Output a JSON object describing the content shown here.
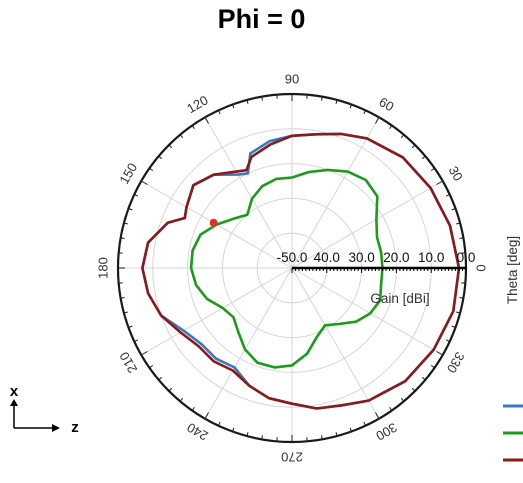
{
  "chart_data": {
    "type": "polar-line",
    "title": "Phi = 0",
    "angular_axis": {
      "label": "Theta [deg]",
      "ticks": [
        0,
        30,
        60,
        90,
        120,
        150,
        180,
        210,
        240,
        270,
        300,
        330
      ],
      "tick_labels": [
        "0",
        "30",
        "60",
        "90",
        "120",
        "150",
        "180",
        "210",
        "240",
        "270",
        "300",
        "330"
      ]
    },
    "radial_axis": {
      "label": "Gain [dBi]",
      "range": [
        -50,
        0
      ],
      "ticks": [
        -50,
        -40,
        -30,
        -20,
        -10,
        0
      ],
      "tick_labels": [
        "-50.0",
        "40.0",
        "30.0",
        "20.0",
        "10.0",
        "0.0"
      ]
    },
    "grid": true,
    "series": [
      {
        "color": "#3a78c2",
        "points": [
          [
            0,
            -2
          ],
          [
            15,
            -3
          ],
          [
            30,
            -4
          ],
          [
            45,
            -5
          ],
          [
            60,
            -7
          ],
          [
            70,
            -9
          ],
          [
            80,
            -11
          ],
          [
            90,
            -12
          ],
          [
            100,
            -13
          ],
          [
            110,
            -15
          ],
          [
            115,
            -20
          ],
          [
            120,
            -19
          ],
          [
            130,
            -15
          ],
          [
            140,
            -13
          ],
          [
            150,
            -15
          ],
          [
            155,
            -16
          ],
          [
            160,
            -12
          ],
          [
            170,
            -8
          ],
          [
            180,
            -7
          ],
          [
            190,
            -8
          ],
          [
            200,
            -10
          ],
          [
            210,
            -14
          ],
          [
            220,
            -16
          ],
          [
            230,
            -16
          ],
          [
            240,
            -17
          ],
          [
            250,
            -14
          ],
          [
            260,
            -12
          ],
          [
            270,
            -11
          ],
          [
            280,
            -9
          ],
          [
            290,
            -8
          ],
          [
            300,
            -6
          ],
          [
            315,
            -4
          ],
          [
            330,
            -3
          ],
          [
            345,
            -2
          ]
        ]
      },
      {
        "color": "#1a9c1a",
        "points": [
          [
            0,
            -24
          ],
          [
            10,
            -24
          ],
          [
            20,
            -24
          ],
          [
            30,
            -22
          ],
          [
            40,
            -18
          ],
          [
            50,
            -17
          ],
          [
            60,
            -18
          ],
          [
            70,
            -20
          ],
          [
            80,
            -22
          ],
          [
            90,
            -24
          ],
          [
            100,
            -24
          ],
          [
            110,
            -25
          ],
          [
            120,
            -27
          ],
          [
            130,
            -30
          ],
          [
            140,
            -28
          ],
          [
            150,
            -25
          ],
          [
            160,
            -22
          ],
          [
            170,
            -21
          ],
          [
            180,
            -21
          ],
          [
            190,
            -22
          ],
          [
            200,
            -24
          ],
          [
            210,
            -27
          ],
          [
            220,
            -28
          ],
          [
            230,
            -26
          ],
          [
            240,
            -23
          ],
          [
            250,
            -21
          ],
          [
            260,
            -21
          ],
          [
            270,
            -22
          ],
          [
            280,
            -25
          ],
          [
            290,
            -29
          ],
          [
            300,
            -31
          ],
          [
            310,
            -29
          ],
          [
            320,
            -26
          ],
          [
            330,
            -24
          ],
          [
            340,
            -23
          ],
          [
            350,
            -24
          ]
        ]
      },
      {
        "color": "#8b1a1a",
        "points": [
          [
            0,
            -2
          ],
          [
            15,
            -3
          ],
          [
            30,
            -4
          ],
          [
            45,
            -5
          ],
          [
            60,
            -7
          ],
          [
            70,
            -9
          ],
          [
            80,
            -11
          ],
          [
            90,
            -12
          ],
          [
            100,
            -14
          ],
          [
            110,
            -16
          ],
          [
            115,
            -19
          ],
          [
            120,
            -18
          ],
          [
            130,
            -15
          ],
          [
            140,
            -13
          ],
          [
            150,
            -15
          ],
          [
            155,
            -16
          ],
          [
            160,
            -12
          ],
          [
            170,
            -8
          ],
          [
            180,
            -7
          ],
          [
            190,
            -8
          ],
          [
            200,
            -10
          ],
          [
            210,
            -13
          ],
          [
            220,
            -15
          ],
          [
            230,
            -15
          ],
          [
            240,
            -16
          ],
          [
            250,
            -14
          ],
          [
            260,
            -12
          ],
          [
            270,
            -11
          ],
          [
            280,
            -9
          ],
          [
            290,
            -8
          ],
          [
            300,
            -6
          ],
          [
            315,
            -4
          ],
          [
            330,
            -3
          ],
          [
            345,
            -2
          ]
        ]
      }
    ],
    "markers": [
      {
        "theta": 150,
        "gain": -24,
        "color": "#e03030"
      }
    ]
  },
  "axes_indicator": {
    "vertical_label": "x",
    "horizontal_label": "z"
  }
}
